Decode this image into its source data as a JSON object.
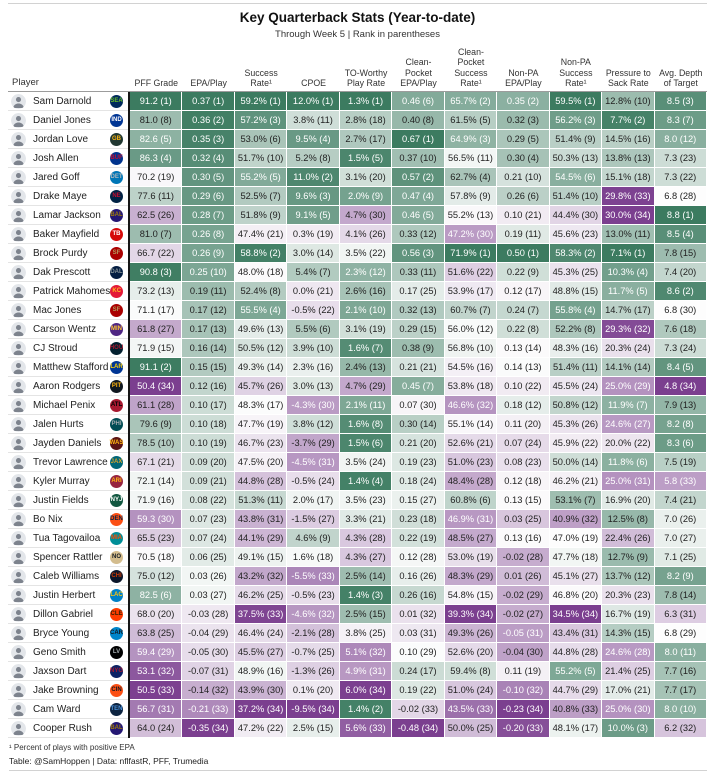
{
  "header": {
    "title": "Key Quarterback Stats (Year-to-date)",
    "subtitle": "Through Week 5 | Rank in parentheses"
  },
  "footer": {
    "footnote": "¹ Percent of plays with positive EPA",
    "credit": "Table: @SamHoppen | Data: nflfastR, PFF, Trumedia"
  },
  "chart_data": {
    "type": "table",
    "title": "Key Quarterback Stats (Year-to-date)",
    "subtitle": "Through Week 5 | Rank in parentheses",
    "player_header": "Player",
    "columns": [
      "PFF Grade",
      "EPA/Play",
      "Success Rate¹",
      "CPOE",
      "TO-Worthy Play Rate",
      "Clean-Pocket EPA/Play",
      "Clean-Pocket Success Rate¹",
      "Non-PA EPA/Play",
      "Non-PA Success Rate¹",
      "Pressure to Sack Rate",
      "Avg. Depth of Target"
    ],
    "color_scale": {
      "best": "#3c7b60",
      "mid": "#fdfdfd",
      "worst": "#7b3f8f",
      "note": "diverging green (rank 1) to white to purple (rank 34), scaled by value within each column"
    },
    "rows": [
      {
        "player": "Sam Darnold",
        "team": "SEA",
        "logo_bg": "#002a5c",
        "logo_fg": "#69be28",
        "stats": [
          "91.2 (1)",
          "0.37 (1)",
          "59.2% (1)",
          "12.0% (1)",
          "1.3% (1)",
          "0.46 (6)",
          "65.7% (2)",
          "0.35 (2)",
          "59.5% (1)",
          "12.8% (10)",
          "8.5 (3)"
        ]
      },
      {
        "player": "Daniel Jones",
        "team": "IND",
        "logo_bg": "#003594",
        "logo_fg": "#ffffff",
        "stats": [
          "81.0 (8)",
          "0.36 (2)",
          "57.2% (3)",
          "3.8% (11)",
          "2.8% (18)",
          "0.40 (8)",
          "61.5% (5)",
          "0.32 (3)",
          "56.2% (3)",
          "7.7% (2)",
          "8.3 (7)"
        ]
      },
      {
        "player": "Jordan Love",
        "team": "GB",
        "logo_bg": "#203731",
        "logo_fg": "#ffb612",
        "stats": [
          "82.6 (5)",
          "0.35 (3)",
          "53.0% (6)",
          "9.5% (4)",
          "2.7% (17)",
          "0.67 (1)",
          "64.9% (3)",
          "0.29 (5)",
          "51.4% (9)",
          "14.5% (16)",
          "8.0 (12)"
        ]
      },
      {
        "player": "Josh Allen",
        "team": "BUF",
        "logo_bg": "#00338d",
        "logo_fg": "#c60c30",
        "stats": [
          "86.3 (4)",
          "0.32 (4)",
          "51.7% (10)",
          "5.2% (8)",
          "1.5% (5)",
          "0.37 (10)",
          "56.5% (11)",
          "0.30 (4)",
          "50.3% (13)",
          "13.8% (13)",
          "7.3 (23)"
        ]
      },
      {
        "player": "Jared Goff",
        "team": "DET",
        "logo_bg": "#0076b6",
        "logo_fg": "#b0b7bc",
        "stats": [
          "70.2 (19)",
          "0.30 (5)",
          "55.2% (5)",
          "11.0% (2)",
          "3.1% (20)",
          "0.57 (2)",
          "62.7% (4)",
          "0.21 (10)",
          "54.5% (6)",
          "15.1% (18)",
          "7.3 (22)"
        ]
      },
      {
        "player": "Drake Maye",
        "team": "NE",
        "logo_bg": "#002244",
        "logo_fg": "#c60c30",
        "stats": [
          "77.6 (11)",
          "0.29 (6)",
          "52.5% (7)",
          "9.6% (3)",
          "2.0% (9)",
          "0.47 (4)",
          "57.8% (9)",
          "0.26 (6)",
          "51.4% (10)",
          "29.8% (33)",
          "6.8 (28)"
        ]
      },
      {
        "player": "Lamar Jackson",
        "team": "BAL",
        "logo_bg": "#241773",
        "logo_fg": "#9e7c0c",
        "stats": [
          "62.5 (26)",
          "0.28 (7)",
          "51.8% (9)",
          "9.1% (5)",
          "4.7% (30)",
          "0.46 (5)",
          "55.2% (13)",
          "0.10 (21)",
          "44.4% (30)",
          "30.0% (34)",
          "8.8 (1)"
        ]
      },
      {
        "player": "Baker Mayfield",
        "team": "TB",
        "logo_bg": "#d50a0a",
        "logo_fg": "#ffffff",
        "stats": [
          "81.0 (7)",
          "0.26 (8)",
          "47.4% (21)",
          "0.3% (19)",
          "4.1% (26)",
          "0.33 (12)",
          "47.2% (30)",
          "0.19 (11)",
          "45.6% (23)",
          "13.0% (11)",
          "8.5 (4)"
        ]
      },
      {
        "player": "Brock Purdy",
        "team": "SF",
        "logo_bg": "#aa0000",
        "logo_fg": "#b3995d",
        "stats": [
          "66.7 (22)",
          "0.26 (9)",
          "58.8% (2)",
          "3.0% (14)",
          "3.5% (22)",
          "0.56 (3)",
          "71.9% (1)",
          "0.50 (1)",
          "58.3% (2)",
          "7.1% (1)",
          "7.8 (15)"
        ]
      },
      {
        "player": "Dak Prescott",
        "team": "DAL",
        "logo_bg": "#041e42",
        "logo_fg": "#869397",
        "stats": [
          "90.8 (3)",
          "0.25 (10)",
          "48.0% (18)",
          "5.4% (7)",
          "2.3% (12)",
          "0.33 (11)",
          "51.6% (22)",
          "0.22 (9)",
          "45.3% (25)",
          "10.3% (4)",
          "7.4 (20)"
        ]
      },
      {
        "player": "Patrick Mahomes",
        "team": "KC",
        "logo_bg": "#e31837",
        "logo_fg": "#ffb81c",
        "stats": [
          "73.2 (13)",
          "0.19 (11)",
          "52.4% (8)",
          "0.0% (21)",
          "2.6% (16)",
          "0.17 (25)",
          "53.9% (17)",
          "0.12 (17)",
          "48.8% (15)",
          "11.7% (5)",
          "8.6 (2)"
        ]
      },
      {
        "player": "Mac Jones",
        "team": "SF",
        "logo_bg": "#aa0000",
        "logo_fg": "#b3995d",
        "stats": [
          "71.1 (17)",
          "0.17 (12)",
          "55.5% (4)",
          "-0.5% (22)",
          "2.1% (10)",
          "0.32 (13)",
          "60.7% (7)",
          "0.24 (7)",
          "55.8% (4)",
          "14.7% (17)",
          "6.8 (30)"
        ]
      },
      {
        "player": "Carson Wentz",
        "team": "MIN",
        "logo_bg": "#4f2683",
        "logo_fg": "#ffc62f",
        "stats": [
          "61.8 (27)",
          "0.17 (13)",
          "49.6% (13)",
          "5.5% (6)",
          "3.1% (19)",
          "0.29 (15)",
          "56.0% (12)",
          "0.22 (8)",
          "52.2% (8)",
          "29.3% (32)",
          "7.6 (18)"
        ]
      },
      {
        "player": "CJ Stroud",
        "team": "HOU",
        "logo_bg": "#03202f",
        "logo_fg": "#a71930",
        "stats": [
          "71.9 (15)",
          "0.16 (14)",
          "50.5% (12)",
          "3.9% (10)",
          "1.6% (7)",
          "0.38 (9)",
          "56.8% (10)",
          "0.13 (14)",
          "48.3% (16)",
          "20.3% (24)",
          "7.3 (24)"
        ]
      },
      {
        "player": "Matthew Stafford",
        "team": "LAR",
        "logo_bg": "#003594",
        "logo_fg": "#ffd100",
        "stats": [
          "91.1 (2)",
          "0.15 (15)",
          "49.3% (14)",
          "2.3% (16)",
          "2.4% (13)",
          "0.21 (21)",
          "54.5% (16)",
          "0.14 (13)",
          "51.4% (11)",
          "14.1% (14)",
          "8.4 (5)"
        ]
      },
      {
        "player": "Aaron Rodgers",
        "team": "PIT",
        "logo_bg": "#101820",
        "logo_fg": "#ffb612",
        "stats": [
          "50.4 (34)",
          "0.12 (16)",
          "45.7% (26)",
          "3.0% (13)",
          "4.7% (29)",
          "0.45 (7)",
          "53.8% (18)",
          "0.10 (22)",
          "45.5% (24)",
          "25.0% (29)",
          "4.8 (34)"
        ]
      },
      {
        "player": "Michael Penix",
        "team": "ATL",
        "logo_bg": "#a71930",
        "logo_fg": "#000000",
        "stats": [
          "61.1 (28)",
          "0.10 (17)",
          "48.3% (17)",
          "-4.3% (30)",
          "2.1% (11)",
          "0.07 (30)",
          "46.6% (32)",
          "0.18 (12)",
          "50.8% (12)",
          "11.9% (7)",
          "7.9 (13)"
        ]
      },
      {
        "player": "Jalen Hurts",
        "team": "PHI",
        "logo_bg": "#004c54",
        "logo_fg": "#a5acaf",
        "stats": [
          "79.6 (9)",
          "0.10 (18)",
          "47.7% (19)",
          "3.8% (12)",
          "1.6% (8)",
          "0.30 (14)",
          "55.1% (14)",
          "0.11 (20)",
          "45.3% (26)",
          "24.6% (27)",
          "8.2 (8)"
        ]
      },
      {
        "player": "Jayden Daniels",
        "team": "WAS",
        "logo_bg": "#5a1414",
        "logo_fg": "#ffb612",
        "stats": [
          "78.5 (10)",
          "0.10 (19)",
          "46.7% (23)",
          "-3.7% (29)",
          "1.5% (6)",
          "0.21 (20)",
          "52.6% (21)",
          "0.07 (24)",
          "45.9% (22)",
          "20.0% (22)",
          "8.3 (6)"
        ]
      },
      {
        "player": "Trevor Lawrence",
        "team": "JAX",
        "logo_bg": "#006778",
        "logo_fg": "#d7a22a",
        "stats": [
          "67.1 (21)",
          "0.09 (20)",
          "47.5% (20)",
          "-4.5% (31)",
          "3.5% (24)",
          "0.19 (23)",
          "51.0% (23)",
          "0.08 (23)",
          "50.0% (14)",
          "11.8% (6)",
          "7.5 (19)"
        ]
      },
      {
        "player": "Kyler Murray",
        "team": "ARI",
        "logo_bg": "#97233f",
        "logo_fg": "#ffb612",
        "stats": [
          "72.1 (14)",
          "0.09 (21)",
          "44.8% (28)",
          "-0.5% (24)",
          "1.4% (4)",
          "0.18 (24)",
          "48.4% (28)",
          "0.12 (18)",
          "46.2% (21)",
          "25.0% (31)",
          "5.8 (33)"
        ]
      },
      {
        "player": "Justin Fields",
        "team": "NYJ",
        "logo_bg": "#115740",
        "logo_fg": "#ffffff",
        "stats": [
          "71.9 (16)",
          "0.08 (22)",
          "51.3% (11)",
          "2.0% (17)",
          "3.5% (23)",
          "0.15 (27)",
          "60.8% (6)",
          "0.13 (15)",
          "53.1% (7)",
          "16.9% (20)",
          "7.4 (21)"
        ]
      },
      {
        "player": "Bo Nix",
        "team": "DEN",
        "logo_bg": "#fb4f14",
        "logo_fg": "#002244",
        "stats": [
          "59.3 (30)",
          "0.07 (23)",
          "43.8% (31)",
          "-1.5% (27)",
          "3.3% (21)",
          "0.23 (18)",
          "46.9% (31)",
          "0.03 (25)",
          "40.9% (32)",
          "12.5% (8)",
          "7.0 (26)"
        ]
      },
      {
        "player": "Tua Tagovailoa",
        "team": "MIA",
        "logo_bg": "#008e97",
        "logo_fg": "#fc4c02",
        "stats": [
          "65.5 (23)",
          "0.07 (24)",
          "44.1% (29)",
          "4.6% (9)",
          "4.3% (28)",
          "0.22 (19)",
          "48.5% (27)",
          "0.13 (16)",
          "47.0% (19)",
          "22.4% (26)",
          "7.0 (27)"
        ]
      },
      {
        "player": "Spencer Rattler",
        "team": "NO",
        "logo_bg": "#d3bc8d",
        "logo_fg": "#101820",
        "stats": [
          "70.5 (18)",
          "0.06 (25)",
          "49.1% (15)",
          "1.6% (18)",
          "4.3% (27)",
          "0.12 (28)",
          "53.0% (19)",
          "-0.02 (28)",
          "47.7% (18)",
          "12.7% (9)",
          "7.1 (25)"
        ]
      },
      {
        "player": "Caleb Williams",
        "team": "CHI",
        "logo_bg": "#0b162a",
        "logo_fg": "#c83803",
        "stats": [
          "75.0 (12)",
          "0.03 (26)",
          "43.2% (32)",
          "-5.5% (33)",
          "2.5% (14)",
          "0.16 (26)",
          "48.3% (29)",
          "0.01 (26)",
          "45.1% (27)",
          "13.7% (12)",
          "8.2 (9)"
        ]
      },
      {
        "player": "Justin Herbert",
        "team": "LAC",
        "logo_bg": "#0080c6",
        "logo_fg": "#ffc20e",
        "stats": [
          "82.5 (6)",
          "0.03 (27)",
          "46.2% (25)",
          "-0.5% (23)",
          "1.4% (3)",
          "0.26 (16)",
          "54.8% (15)",
          "-0.02 (29)",
          "46.8% (20)",
          "20.3% (23)",
          "7.8 (14)"
        ]
      },
      {
        "player": "Dillon Gabriel",
        "team": "CLE",
        "logo_bg": "#ff3c00",
        "logo_fg": "#311d00",
        "stats": [
          "68.0 (20)",
          "-0.03 (28)",
          "37.5% (33)",
          "-4.6% (32)",
          "2.5% (15)",
          "0.01 (32)",
          "39.3% (34)",
          "-0.02 (27)",
          "34.5% (34)",
          "16.7% (19)",
          "6.3 (31)"
        ]
      },
      {
        "player": "Bryce Young",
        "team": "CAR",
        "logo_bg": "#0085ca",
        "logo_fg": "#101820",
        "stats": [
          "63.8 (25)",
          "-0.04 (29)",
          "46.4% (24)",
          "-2.1% (28)",
          "3.8% (25)",
          "0.03 (31)",
          "49.3% (26)",
          "-0.05 (31)",
          "43.4% (31)",
          "14.3% (15)",
          "6.8 (29)"
        ]
      },
      {
        "player": "Geno Smith",
        "team": "LV",
        "logo_bg": "#000000",
        "logo_fg": "#a5acaf",
        "stats": [
          "59.4 (29)",
          "-0.05 (30)",
          "45.5% (27)",
          "-0.7% (25)",
          "5.1% (32)",
          "0.10 (29)",
          "52.6% (20)",
          "-0.04 (30)",
          "44.8% (28)",
          "24.6% (28)",
          "8.0 (11)"
        ]
      },
      {
        "player": "Jaxson Dart",
        "team": "NYG",
        "logo_bg": "#0b2265",
        "logo_fg": "#a71930",
        "stats": [
          "53.1 (32)",
          "-0.07 (31)",
          "48.9% (16)",
          "-1.3% (26)",
          "4.9% (31)",
          "0.24 (17)",
          "59.4% (8)",
          "0.11 (19)",
          "55.2% (5)",
          "21.4% (25)",
          "7.7 (16)"
        ]
      },
      {
        "player": "Jake Browning",
        "team": "CIN",
        "logo_bg": "#fb4f14",
        "logo_fg": "#101820",
        "stats": [
          "50.5 (33)",
          "-0.14 (32)",
          "43.9% (30)",
          "0.1% (20)",
          "6.0% (34)",
          "0.19 (22)",
          "51.0% (24)",
          "-0.10 (32)",
          "44.7% (29)",
          "17.0% (21)",
          "7.7 (17)"
        ]
      },
      {
        "player": "Cam Ward",
        "team": "TEN",
        "logo_bg": "#0c2340",
        "logo_fg": "#4b92db",
        "stats": [
          "56.7 (31)",
          "-0.21 (33)",
          "37.2% (34)",
          "-9.5% (34)",
          "1.4% (2)",
          "-0.02 (33)",
          "43.5% (33)",
          "-0.23 (34)",
          "40.8% (33)",
          "25.0% (30)",
          "8.0 (10)"
        ]
      },
      {
        "player": "Cooper Rush",
        "team": "BAL",
        "logo_bg": "#241773",
        "logo_fg": "#9e7c0c",
        "stats": [
          "64.0 (24)",
          "-0.35 (34)",
          "47.2% (22)",
          "2.5% (15)",
          "5.6% (33)",
          "-0.48 (34)",
          "50.0% (25)",
          "-0.20 (33)",
          "48.1% (17)",
          "10.0% (3)",
          "6.2 (32)"
        ]
      }
    ]
  }
}
